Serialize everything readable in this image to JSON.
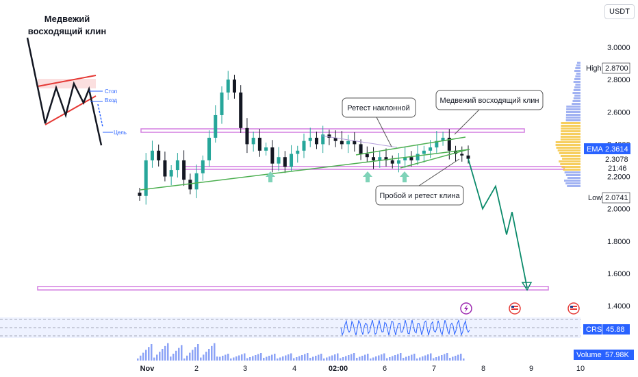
{
  "header": {
    "currency": "USDT"
  },
  "inset": {
    "title_line1": "Медвежий",
    "title_line2": "восходящий клин",
    "stop_label": "Стоп",
    "entry_label": "Вход",
    "target_label": "Цель"
  },
  "annotations": {
    "retest_slope": "Ретест наклонной",
    "bear_wedge": "Медвежий восходящий клин",
    "breakout_retest": "Пробой и ретест клина"
  },
  "price_axis": {
    "ticks": [
      "3.0000",
      "2.8000",
      "2.6000",
      "2.4000",
      "2.2000",
      "2.0000",
      "1.8000",
      "1.6000",
      "1.4000"
    ],
    "high_label": "High",
    "high_value": "2.8700",
    "low_label": "Low",
    "low_value": "2.0741",
    "ema_label": "EMA",
    "ema_value": "2.3614",
    "last_price": "2.3078",
    "countdown": "21:46"
  },
  "time_axis": {
    "labels": [
      "Nov",
      "2",
      "3",
      "4",
      "02:00",
      "6",
      "7",
      "8",
      "9",
      "10"
    ]
  },
  "indicators": {
    "crsi_label": "CRSI",
    "crsi_value": "45.88",
    "volume_label": "Volume",
    "volume_value": "57.98K"
  },
  "colors": {
    "up": "#26a69a",
    "down": "#131722",
    "support_zone": "#d37ee0",
    "trend_line": "#4caf50",
    "wedge_line": "#4caf50",
    "projection": "#0a8a6a",
    "arrow_up": "#7fd3b8",
    "ema_tag": "#2962ff",
    "crsi_line": "#2962ff",
    "volume_bar": "#5b7cf2"
  },
  "chart_data": {
    "type": "candlestick",
    "x": [
      "Nov 1",
      "Nov 2",
      "Nov 3",
      "Nov 4",
      "Nov 5 02:00",
      "Nov 6",
      "Nov 7",
      "Nov 8",
      "Nov 9",
      "Nov 10"
    ],
    "ylim": [
      1.4,
      3.05
    ],
    "candles_close": [
      2.08,
      2.3,
      2.36,
      2.3,
      2.2,
      2.24,
      2.3,
      2.18,
      2.12,
      2.22,
      2.3,
      2.44,
      2.58,
      2.72,
      2.8,
      2.72,
      2.5,
      2.4,
      2.44,
      2.36,
      2.38,
      2.28,
      2.32,
      2.26,
      2.34,
      2.36,
      2.42,
      2.44,
      2.4,
      2.46,
      2.44,
      2.42,
      2.4,
      2.42,
      2.4,
      2.34,
      2.32,
      2.3,
      2.32,
      2.3,
      2.28,
      2.3,
      2.32,
      2.3,
      2.34,
      2.36,
      2.38,
      2.42,
      2.44,
      2.36,
      2.34,
      2.33,
      2.31
    ],
    "resistance_level": 2.47,
    "support_level": 2.25,
    "target_level": 1.51,
    "projection_path": [
      2.31,
      2.0,
      2.14,
      1.84,
      1.98,
      1.51
    ]
  }
}
